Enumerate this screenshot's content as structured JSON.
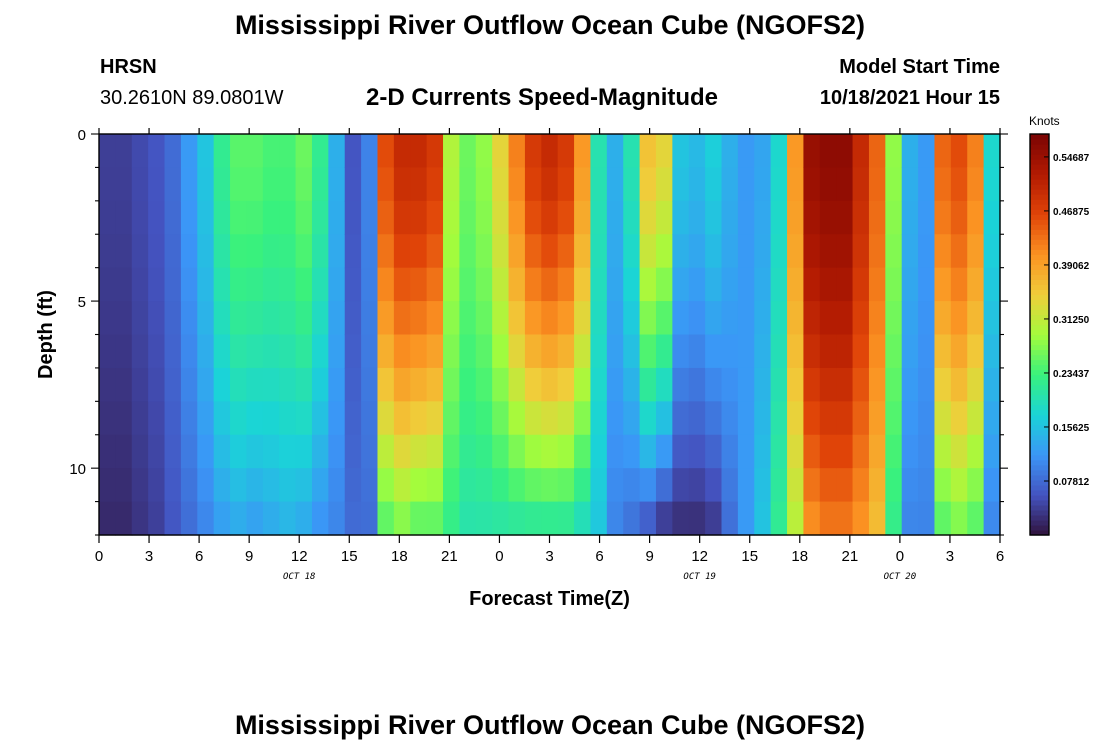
{
  "header": {
    "title": "Mississippi River Outflow Ocean Cube (NGOFS2)",
    "station_code": "HRSN",
    "station_coords": "30.2610N  89.0801W",
    "subtitle": "2-D Currents Speed-Magnitude",
    "model_start_label": "Model Start Time",
    "model_start_value": "10/18/2021 Hour 15"
  },
  "footer": {
    "title": "Mississippi River Outflow Ocean Cube (NGOFS2)"
  },
  "chart_data": {
    "type": "heatmap",
    "title": "2-D Currents Speed-Magnitude",
    "xlabel": "Forecast Time(Z)",
    "ylabel": "Depth (ft)",
    "x_tick_labels": [
      "0",
      "3",
      "6",
      "9",
      "12",
      "15",
      "18",
      "21",
      "0",
      "3",
      "6",
      "9",
      "12",
      "15",
      "18",
      "21",
      "0",
      "3",
      "6"
    ],
    "x_date_labels": [
      "OCT 18",
      "OCT 19",
      "OCT 20"
    ],
    "x_range_hours": [
      0,
      54
    ],
    "y_ticks": [
      0,
      5,
      10
    ],
    "y_range_ft": [
      0,
      12
    ],
    "y_inverted": true,
    "colorbar": {
      "unit_label": "Knots",
      "tick_labels": [
        "0.54687",
        "0.46875",
        "0.39062",
        "0.31250",
        "0.23437",
        "0.15625",
        "0.07812"
      ],
      "range": [
        0,
        0.58
      ],
      "colormap": "turbo"
    },
    "depth_levels_ft": [
      0,
      1,
      2,
      3,
      4,
      5,
      6,
      7,
      8,
      9,
      10,
      11,
      12
    ],
    "surface_speed_by_hour": [
      0.04,
      0.04,
      0.05,
      0.06,
      0.08,
      0.12,
      0.16,
      0.22,
      0.25,
      0.25,
      0.24,
      0.24,
      0.26,
      0.22,
      0.14,
      0.06,
      0.1,
      0.46,
      0.5,
      0.5,
      0.48,
      0.3,
      0.26,
      0.28,
      0.34,
      0.42,
      0.48,
      0.5,
      0.48,
      0.4,
      0.2,
      0.14,
      0.2,
      0.36,
      0.34,
      0.16,
      0.15,
      0.17,
      0.14,
      0.12,
      0.13,
      0.18,
      0.4,
      0.55,
      0.56,
      0.56,
      0.5,
      0.44,
      0.28,
      0.14,
      0.12,
      0.44,
      0.46,
      0.42,
      0.18
    ],
    "bottom_speed_by_hour": [
      0.02,
      0.02,
      0.03,
      0.04,
      0.06,
      0.08,
      0.1,
      0.12,
      0.13,
      0.12,
      0.13,
      0.14,
      0.13,
      0.11,
      0.1,
      0.08,
      0.08,
      0.24,
      0.26,
      0.24,
      0.24,
      0.22,
      0.2,
      0.2,
      0.2,
      0.2,
      0.2,
      0.2,
      0.2,
      0.18,
      0.16,
      0.1,
      0.08,
      0.05,
      0.02,
      0.02,
      0.02,
      0.03,
      0.08,
      0.12,
      0.16,
      0.22,
      0.3,
      0.4,
      0.42,
      0.42,
      0.4,
      0.36,
      0.22,
      0.1,
      0.1,
      0.24,
      0.26,
      0.24,
      0.1
    ]
  }
}
